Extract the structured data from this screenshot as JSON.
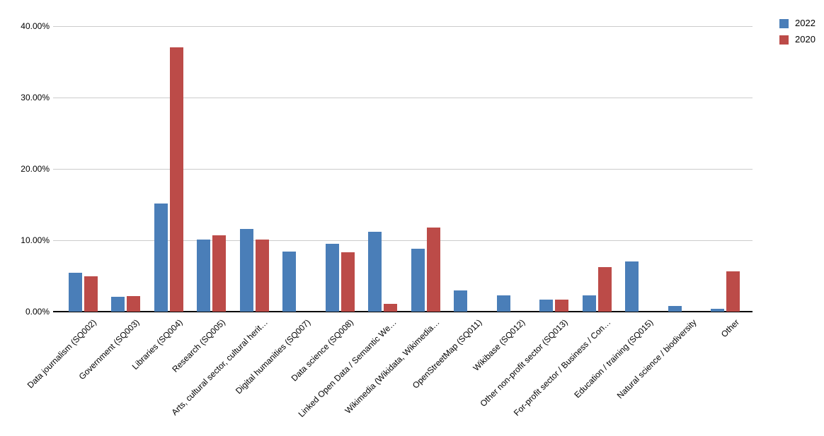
{
  "chart_data": {
    "type": "bar",
    "title": "",
    "xlabel": "",
    "ylabel": "",
    "ylim": [
      0,
      40
    ],
    "grid": true,
    "legend_position": "top-right",
    "y_tick_labels": [
      "0.00%",
      "10.00%",
      "20.00%",
      "30.00%",
      "40.00%"
    ],
    "categories": [
      "Data journalism (SQ002)",
      "Government (SQ003)",
      "Libraries (SQ004)",
      "Research (SQ005)",
      "Arts, cultural sector, cultural herit…",
      "Digital humanities (SQ007)",
      "Data science (SQ008)",
      "Linked Open Data / Semantic We…",
      "Wikimedia (Wikidata, Wikimedia…",
      "OpenStreetMap (SQ011)",
      "Wikibase (SQ012)",
      "Other non-profit sector (SQ013)",
      "For-profit sector / Business / Con…",
      "Education / training (SQ015)",
      "Natural science / biodiversity",
      "Other"
    ],
    "series": [
      {
        "name": "2022",
        "color": "#4a7eb8",
        "values": [
          5.4,
          2.1,
          15.1,
          10.1,
          11.6,
          8.4,
          9.5,
          11.2,
          8.8,
          3.0,
          2.3,
          1.7,
          2.3,
          7.0,
          0.8,
          0.4
        ]
      },
      {
        "name": "2020",
        "color": "#bc4b48",
        "values": [
          5.0,
          2.2,
          37.0,
          10.7,
          10.1,
          0,
          8.3,
          1.1,
          11.8,
          0,
          0,
          1.7,
          6.2,
          0,
          0,
          5.6
        ]
      }
    ]
  },
  "colors": {
    "gridline": "#cccccc",
    "axis": "#000000",
    "background": "#ffffff",
    "text": "#000000"
  }
}
